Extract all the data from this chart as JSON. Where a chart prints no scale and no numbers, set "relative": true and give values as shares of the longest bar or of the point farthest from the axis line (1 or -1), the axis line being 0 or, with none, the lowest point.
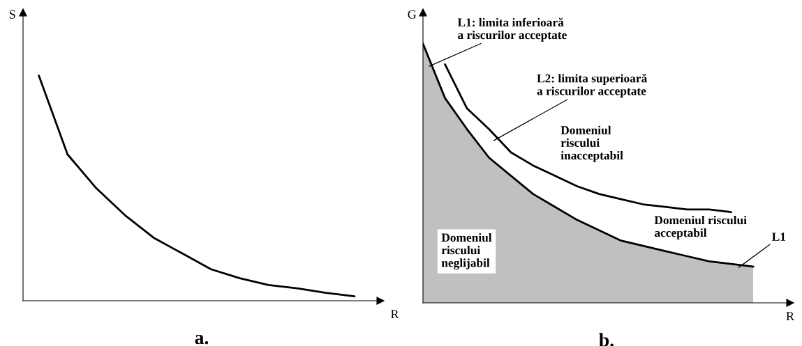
{
  "chart_data": [
    {
      "type": "line",
      "title": "a.",
      "xlabel": "R",
      "ylabel": "S",
      "relative": true,
      "tick_labels": false,
      "categories": [
        null,
        null,
        null,
        null,
        null,
        null,
        null,
        null,
        null,
        null,
        null,
        null
      ],
      "series": [
        {
          "color": "#000000",
          "values": [
            1.0,
            0.65,
            0.5,
            0.38,
            0.28,
            0.21,
            0.14,
            0.1,
            0.07,
            0.055,
            0.035,
            0.02
          ]
        }
      ]
    },
    {
      "type": "line",
      "title": "b.",
      "xlabel": "R",
      "ylabel": "G",
      "relative": true,
      "tick_labels": false,
      "categories": [
        null,
        null,
        null,
        null,
        null,
        null,
        null,
        null,
        null,
        null,
        null,
        null,
        null,
        null,
        null,
        null
      ],
      "series": [
        {
          "type": "area",
          "color": "#c0c0c0",
          "values": [
            1.0,
            0.79,
            0.67,
            0.56,
            0.49,
            0.42,
            0.37,
            0.32,
            0.28,
            0.24,
            0.22,
            0.2,
            0.18,
            0.16,
            0.15,
            0.14
          ]
        },
        {
          "type": "line",
          "color": "#000000",
          "values": [
            null,
            0.92,
            0.75,
            0.67,
            0.58,
            0.53,
            0.49,
            0.45,
            0.42,
            0.4,
            0.38,
            0.37,
            0.36,
            0.36,
            0.35,
            null
          ]
        }
      ],
      "annotations": [
        "L1: limita inferioară\na riscurilor acceptate",
        "L2: limita superioară\na riscurilor acceptate",
        "Domeniul\nriscului\ninacceptabil",
        "Domeniul riscului\nacceptabil",
        "L1",
        "Domeniul\nriscului\nneglijabil"
      ]
    }
  ]
}
